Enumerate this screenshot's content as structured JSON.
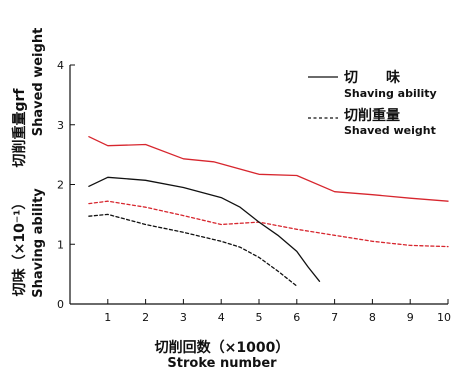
{
  "chart_data": {
    "type": "line",
    "x_axis": {
      "label_jp": "切削回数（×1000）",
      "label_en": "Stroke number",
      "range": [
        0,
        10
      ],
      "ticks": [
        1,
        2,
        3,
        4,
        5,
        6,
        7,
        8,
        9,
        10
      ]
    },
    "y_axis_top": {
      "label_jp": "切削重量grf",
      "label_en": "Shaved weight",
      "range": [
        0,
        4
      ],
      "ticks": [
        0,
        1,
        2,
        3,
        4
      ]
    },
    "y_axis_bottom": {
      "label_jp": "切味（×10⁻¹）",
      "label_en": "Shaving ability"
    },
    "grid": false,
    "legend": {
      "placement": "top-right",
      "entries": [
        {
          "label_jp": "切　　味",
          "label_en": "Shaving ability",
          "dash": "solid"
        },
        {
          "label_jp": "切削重量",
          "label_en": "Shaved weight",
          "dash": "dashed"
        }
      ]
    },
    "series": [
      {
        "color": "#d7262e",
        "dash": "solid",
        "x": [
          0.5,
          1,
          2,
          3,
          3.8,
          5,
          6,
          7,
          8,
          9,
          10
        ],
        "y": [
          2.8,
          2.65,
          2.67,
          2.43,
          2.38,
          2.17,
          2.15,
          1.88,
          1.83,
          1.77,
          1.72
        ]
      },
      {
        "color": "#d7262e",
        "dash": "dashed",
        "x": [
          0.5,
          1,
          2,
          3,
          4,
          5,
          6,
          7,
          8,
          9,
          10
        ],
        "y": [
          1.68,
          1.72,
          1.62,
          1.48,
          1.33,
          1.37,
          1.25,
          1.15,
          1.05,
          0.98,
          0.96
        ]
      },
      {
        "color": "#111111",
        "dash": "solid",
        "x": [
          0.5,
          1,
          2,
          3,
          4,
          4.5,
          5,
          5.5,
          6,
          6.3,
          6.6
        ],
        "y": [
          1.97,
          2.12,
          2.07,
          1.95,
          1.78,
          1.62,
          1.37,
          1.15,
          0.88,
          0.62,
          0.38
        ]
      },
      {
        "color": "#111111",
        "dash": "dashed",
        "x": [
          0.5,
          1,
          2,
          3,
          4,
          4.5,
          5,
          5.5,
          6
        ],
        "y": [
          1.47,
          1.5,
          1.33,
          1.2,
          1.05,
          0.95,
          0.78,
          0.55,
          0.3
        ]
      }
    ]
  }
}
